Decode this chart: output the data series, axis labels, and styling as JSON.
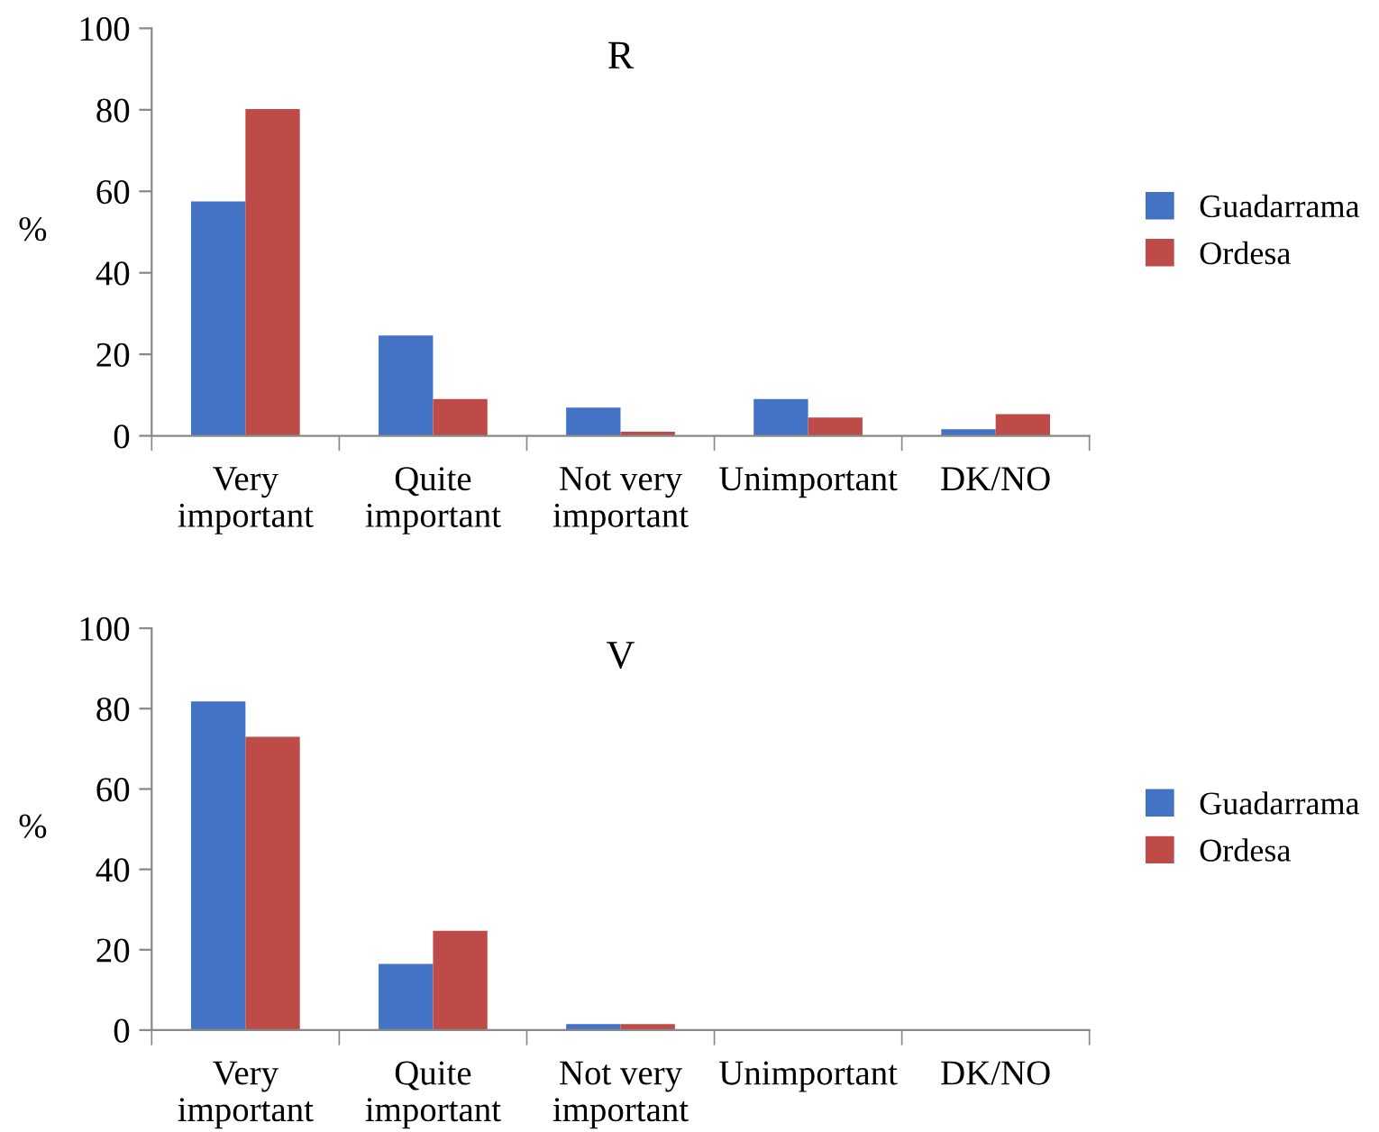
{
  "chart_data": [
    {
      "type": "bar",
      "title": "R",
      "ylabel": "%",
      "categories": [
        "Very\nimportant",
        "Quite\nimportant",
        "Not very\nimportant",
        "Unimportant",
        "DK/NO"
      ],
      "series": [
        {
          "name": "Guadarrama",
          "color": "#4472c4",
          "values": [
            57.5,
            24.6,
            6.9,
            9.0,
            1.6
          ]
        },
        {
          "name": "Ordesa",
          "color": "#be4b48",
          "values": [
            80.2,
            9.0,
            1.0,
            4.5,
            5.3
          ]
        }
      ],
      "ylim": [
        0,
        100
      ],
      "yticks": [
        0,
        20,
        40,
        60,
        80,
        100
      ],
      "grid": false,
      "legend": "right"
    },
    {
      "type": "bar",
      "title": "V",
      "ylabel": "%",
      "categories": [
        "Very\nimportant",
        "Quite\nimportant",
        "Not very\nimportant",
        "Unimportant",
        "DK/NO"
      ],
      "series": [
        {
          "name": "Guadarrama",
          "color": "#4472c4",
          "values": [
            81.8,
            16.5,
            1.5,
            0,
            0
          ]
        },
        {
          "name": "Ordesa",
          "color": "#be4b48",
          "values": [
            73.0,
            24.7,
            1.5,
            0,
            0
          ]
        }
      ],
      "ylim": [
        0,
        100
      ],
      "yticks": [
        0,
        20,
        40,
        60,
        80,
        100
      ],
      "grid": false,
      "legend": "right"
    }
  ]
}
